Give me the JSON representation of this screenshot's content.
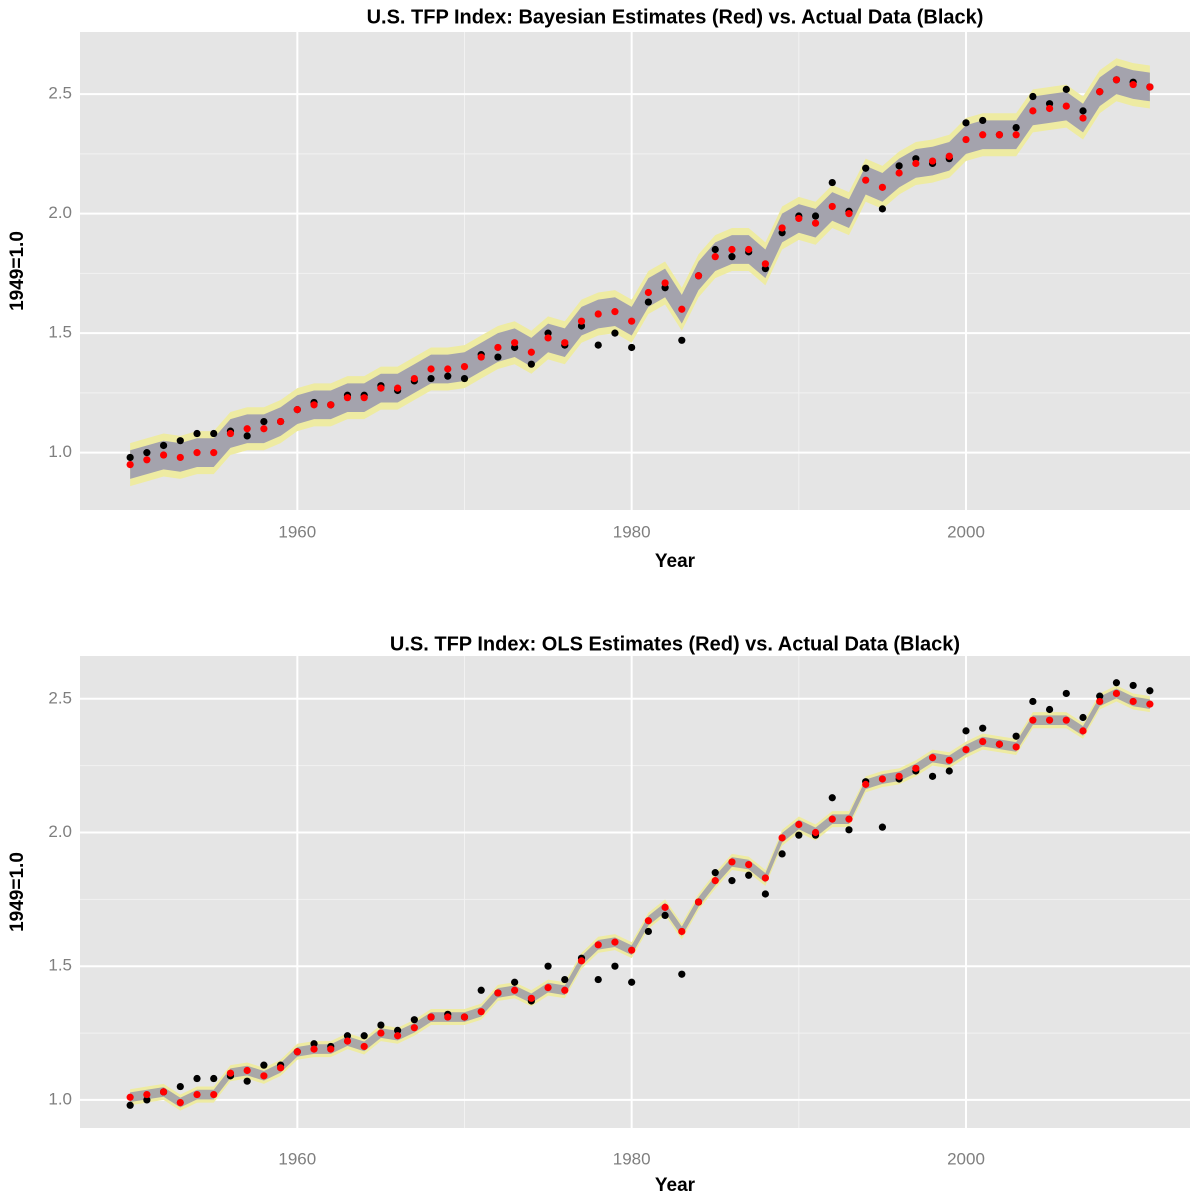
{
  "chart_data": [
    {
      "type": "line-band",
      "title": "U.S. TFP Index: Bayesian Estimates (Red) vs. Actual Data (Black)",
      "x_label": "Year",
      "y_label": "1949=1.0",
      "x": [
        1950,
        1951,
        1952,
        1953,
        1954,
        1955,
        1956,
        1957,
        1958,
        1959,
        1960,
        1961,
        1962,
        1963,
        1964,
        1965,
        1966,
        1967,
        1968,
        1969,
        1970,
        1971,
        1972,
        1973,
        1974,
        1975,
        1976,
        1977,
        1978,
        1979,
        1980,
        1981,
        1982,
        1983,
        1984,
        1985,
        1986,
        1987,
        1988,
        1989,
        1990,
        1991,
        1992,
        1993,
        1994,
        1995,
        1996,
        1997,
        1998,
        1999,
        2000,
        2001,
        2002,
        2003,
        2004,
        2005,
        2006,
        2007,
        2008,
        2009,
        2010,
        2011
      ],
      "band": {
        "inner_halfwidth": 0.06,
        "outer_halfwidth": 0.09,
        "inner_color": "#a4a3ad",
        "outer_color": "#eeeba2"
      },
      "series": [
        {
          "color": "#ff0000",
          "values": [
            0.95,
            0.97,
            0.99,
            0.98,
            1.0,
            1.0,
            1.08,
            1.1,
            1.1,
            1.13,
            1.18,
            1.2,
            1.2,
            1.23,
            1.23,
            1.27,
            1.27,
            1.31,
            1.35,
            1.35,
            1.36,
            1.4,
            1.44,
            1.46,
            1.42,
            1.48,
            1.46,
            1.55,
            1.58,
            1.59,
            1.55,
            1.67,
            1.71,
            1.6,
            1.74,
            1.82,
            1.85,
            1.85,
            1.79,
            1.94,
            1.98,
            1.96,
            2.03,
            2.0,
            2.14,
            2.11,
            2.17,
            2.21,
            2.22,
            2.24,
            2.31,
            2.33,
            2.33,
            2.33,
            2.43,
            2.44,
            2.45,
            2.4,
            2.51,
            2.56,
            2.54,
            2.53
          ]
        },
        {
          "color": "#000000",
          "values": [
            0.98,
            1.0,
            1.03,
            1.05,
            1.08,
            1.08,
            1.09,
            1.07,
            1.13,
            1.13,
            1.18,
            1.21,
            1.2,
            1.24,
            1.24,
            1.28,
            1.26,
            1.3,
            1.31,
            1.32,
            1.31,
            1.41,
            1.4,
            1.44,
            1.37,
            1.5,
            1.45,
            1.53,
            1.45,
            1.5,
            1.44,
            1.63,
            1.69,
            1.47,
            1.74,
            1.85,
            1.82,
            1.84,
            1.77,
            1.92,
            1.99,
            1.99,
            2.13,
            2.01,
            2.19,
            2.02,
            2.2,
            2.23,
            2.21,
            2.23,
            2.38,
            2.39,
            2.33,
            2.36,
            2.49,
            2.46,
            2.52,
            2.43,
            2.51,
            2.56,
            2.55,
            2.53
          ]
        }
      ],
      "xlim": [
        1947,
        2013.4
      ],
      "xticks": [
        1960,
        1980,
        2000
      ],
      "ylim": [
        0.76,
        2.76
      ],
      "yticks": [
        {
          "value": 1,
          "label": "1.0"
        },
        1.5,
        {
          "value": 2,
          "label": "2.0"
        },
        2.5
      ],
      "grid": true
    },
    {
      "type": "line-band",
      "title": "U.S. TFP Index: OLS Estimates (Red) vs. Actual Data (Black)",
      "x_label": "Year",
      "y_label": "1949=1.0",
      "x": [
        1950,
        1951,
        1952,
        1953,
        1954,
        1955,
        1956,
        1957,
        1958,
        1959,
        1960,
        1961,
        1962,
        1963,
        1964,
        1965,
        1966,
        1967,
        1968,
        1969,
        1970,
        1971,
        1972,
        1973,
        1974,
        1975,
        1976,
        1977,
        1978,
        1979,
        1980,
        1981,
        1982,
        1983,
        1984,
        1985,
        1986,
        1987,
        1988,
        1989,
        1990,
        1991,
        1992,
        1993,
        1994,
        1995,
        1996,
        1997,
        1998,
        1999,
        2000,
        2001,
        2002,
        2003,
        2004,
        2005,
        2006,
        2007,
        2008,
        2009,
        2010,
        2011
      ],
      "band": {
        "inner_halfwidth": 0.018,
        "outer_halfwidth": 0.03,
        "inner_color": "#a9a8a8",
        "outer_color": "#eeeba2"
      },
      "series": [
        {
          "color": "#ff0000",
          "values": [
            1.01,
            1.02,
            1.03,
            0.99,
            1.02,
            1.02,
            1.1,
            1.11,
            1.09,
            1.12,
            1.18,
            1.19,
            1.19,
            1.22,
            1.2,
            1.25,
            1.24,
            1.27,
            1.31,
            1.31,
            1.31,
            1.33,
            1.4,
            1.41,
            1.38,
            1.42,
            1.41,
            1.52,
            1.58,
            1.59,
            1.56,
            1.67,
            1.72,
            1.63,
            1.74,
            1.82,
            1.89,
            1.88,
            1.83,
            1.98,
            2.03,
            2.0,
            2.05,
            2.05,
            2.18,
            2.2,
            2.21,
            2.24,
            2.28,
            2.27,
            2.31,
            2.34,
            2.33,
            2.32,
            2.42,
            2.42,
            2.42,
            2.38,
            2.49,
            2.52,
            2.49,
            2.48
          ]
        },
        {
          "color": "#000000",
          "values": [
            0.98,
            1.0,
            1.03,
            1.05,
            1.08,
            1.08,
            1.09,
            1.07,
            1.13,
            1.13,
            1.18,
            1.21,
            1.2,
            1.24,
            1.24,
            1.28,
            1.26,
            1.3,
            1.31,
            1.32,
            1.31,
            1.41,
            1.4,
            1.44,
            1.37,
            1.5,
            1.45,
            1.53,
            1.45,
            1.5,
            1.44,
            1.63,
            1.69,
            1.47,
            1.74,
            1.85,
            1.82,
            1.84,
            1.77,
            1.92,
            1.99,
            1.99,
            2.13,
            2.01,
            2.19,
            2.02,
            2.2,
            2.23,
            2.21,
            2.23,
            2.38,
            2.39,
            2.33,
            2.36,
            2.49,
            2.46,
            2.52,
            2.43,
            2.51,
            2.56,
            2.55,
            2.53
          ]
        }
      ],
      "xlim": [
        1947,
        2013.4
      ],
      "xticks": [
        1960,
        1980,
        2000
      ],
      "ylim": [
        0.895,
        2.66
      ],
      "yticks": [
        {
          "value": 1,
          "label": "1.0"
        },
        1.5,
        {
          "value": 2,
          "label": "2.0"
        },
        2.5
      ],
      "grid": true
    }
  ]
}
